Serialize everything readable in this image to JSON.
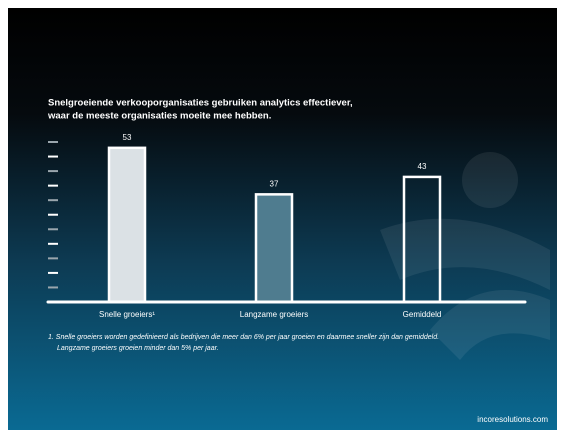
{
  "chart_data": {
    "type": "bar",
    "title": [
      "Snelgroeiende verkooporganisaties gebruiken analytics effectiever,",
      "waar de meeste organisaties moeite mee hebben."
    ],
    "categories": [
      "Snelle groeiers¹",
      "Langzame groeiers",
      "Gemiddeld"
    ],
    "values": [
      53,
      37,
      43
    ],
    "colors": [
      "#dbe1e5",
      "#4f7c8f",
      "transparent"
    ],
    "ylim": [
      0,
      55
    ],
    "yticks": [
      5,
      10,
      15,
      20,
      25,
      30,
      35,
      40,
      45,
      50,
      55
    ],
    "footnote": [
      "1. Snelle groeiers worden gedefinieerd als bedrijven die meer dan 6% per jaar groeien en daarmee sneller zijn dan gemiddeld.",
      "Langzame groeiers groeien minder dan 5% per jaar."
    ],
    "source": "incoresolutions.com"
  }
}
